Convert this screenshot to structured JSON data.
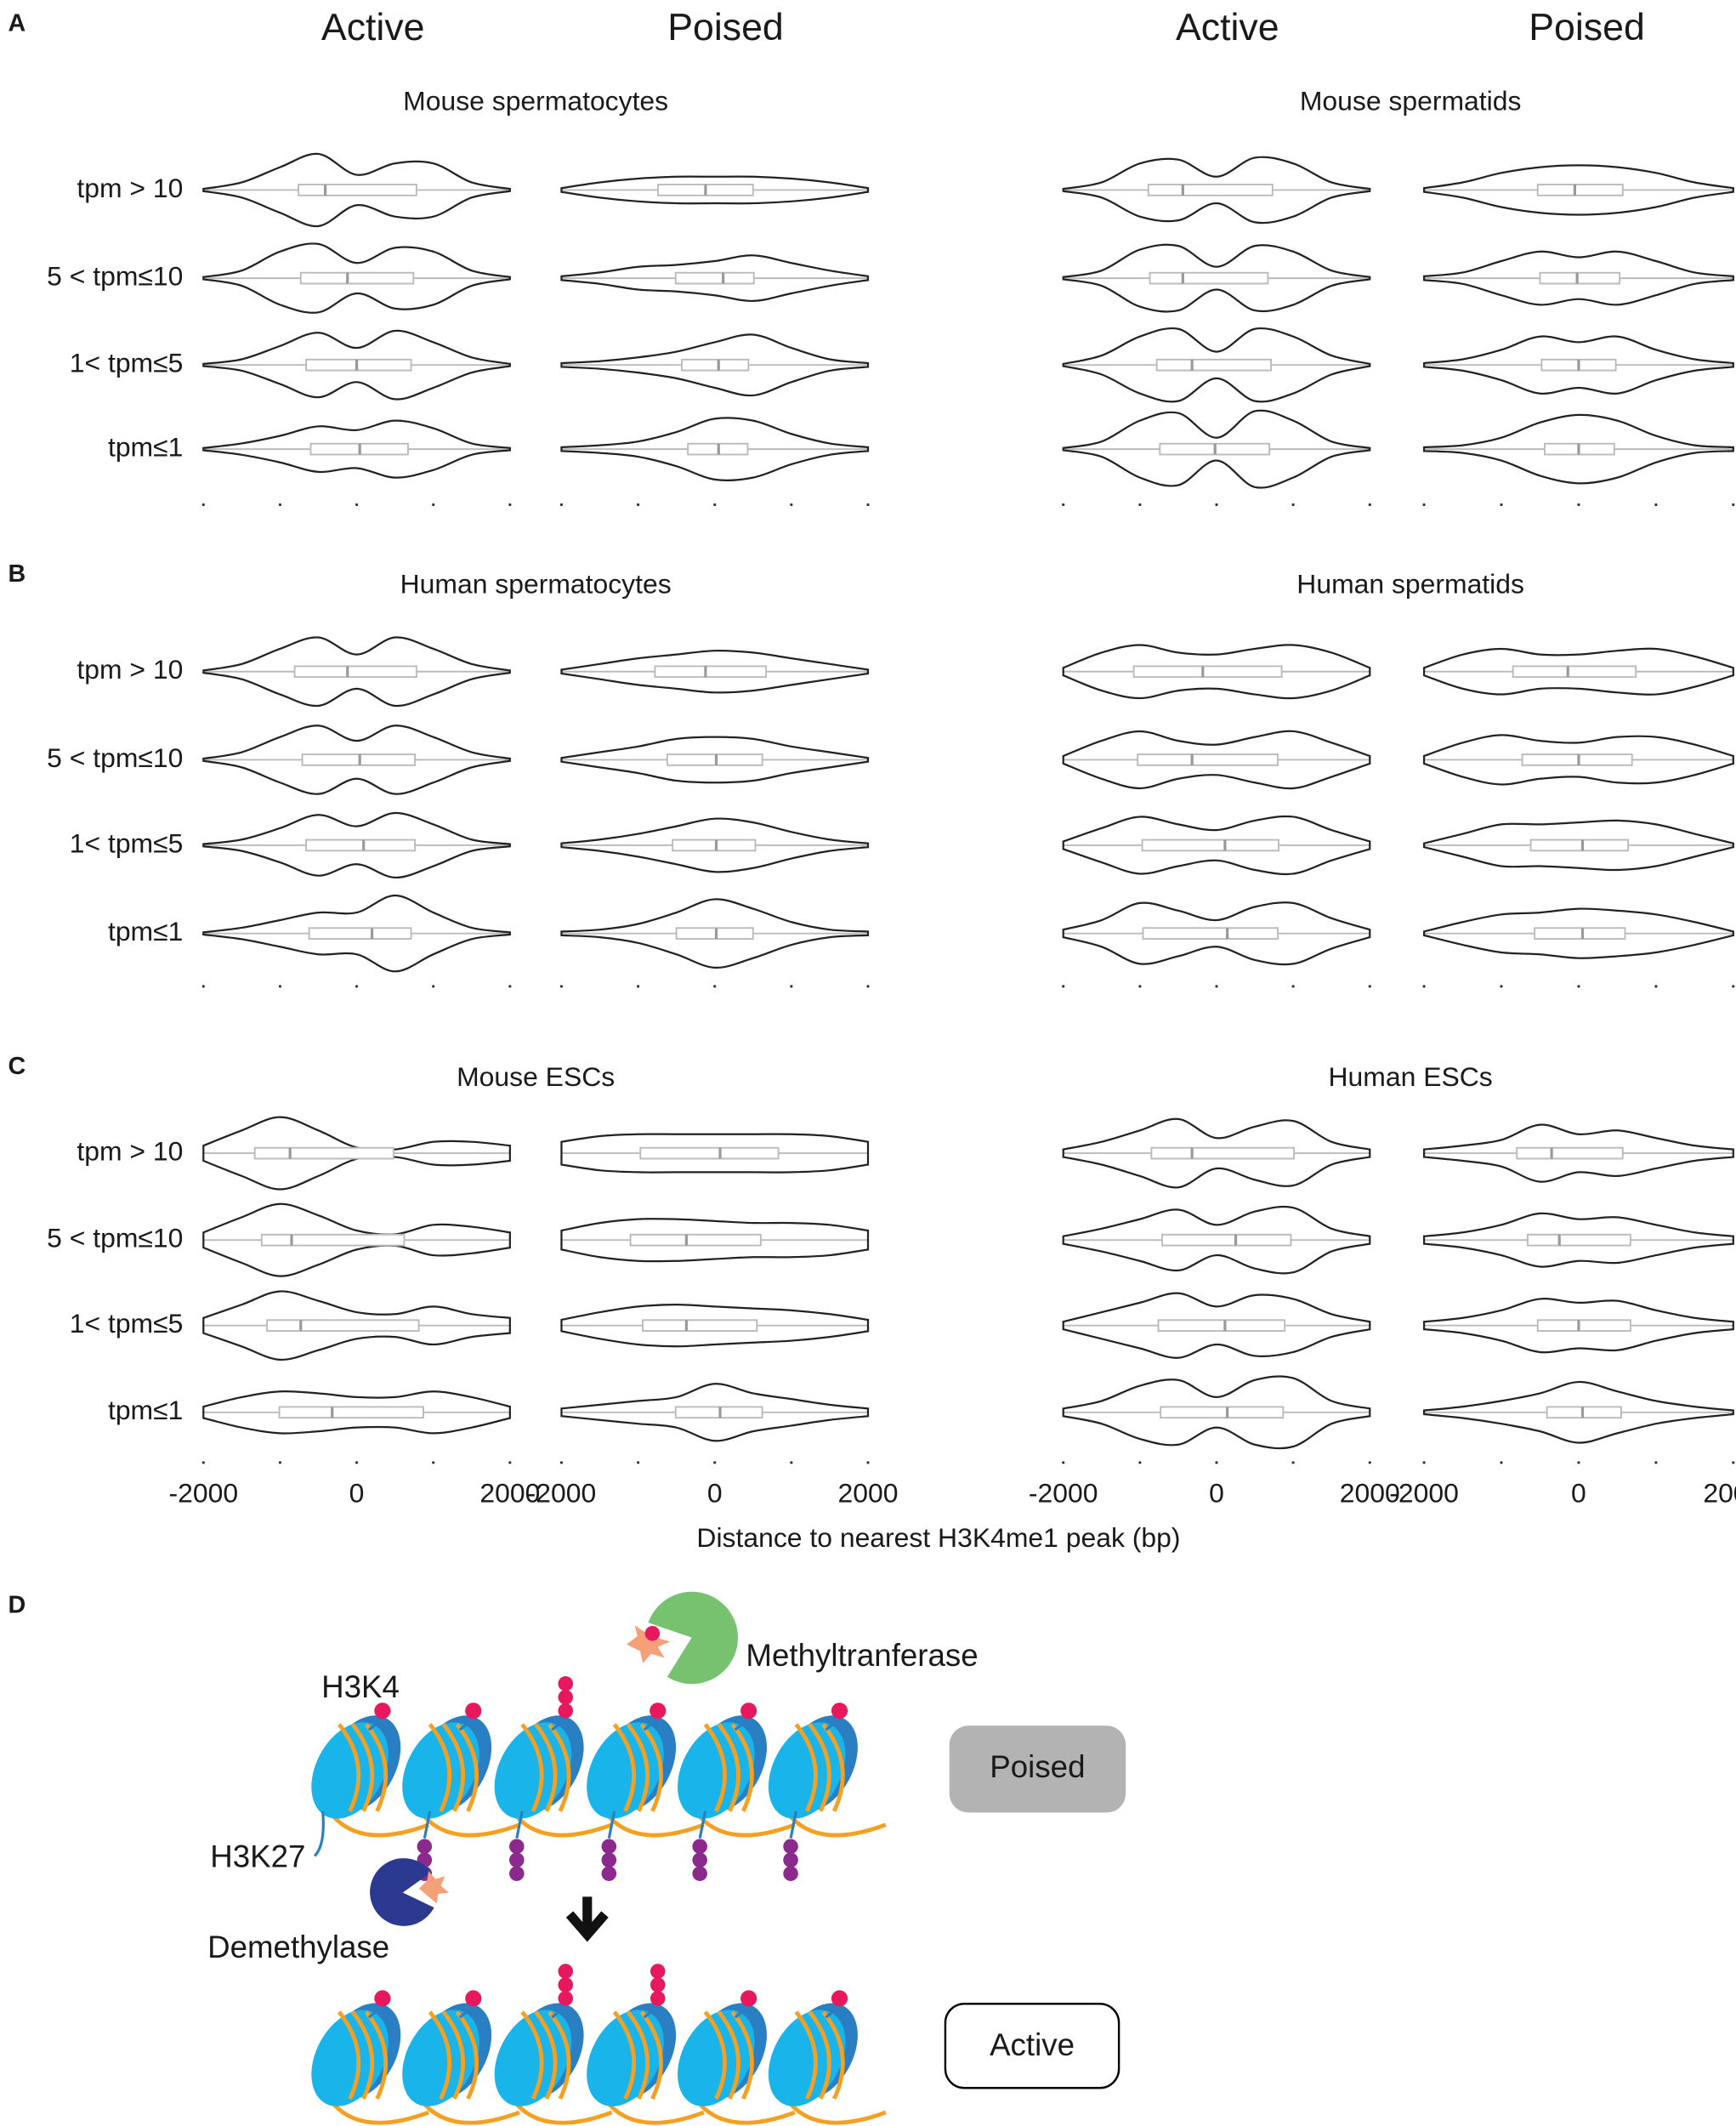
{
  "panel_labels": [
    "A",
    "B",
    "C",
    "D"
  ],
  "column_titles": [
    "Active",
    "Poised",
    "Active",
    "Poised"
  ],
  "row_labels": [
    "tpm > 10",
    "5 < tpm≤10",
    "1< tpm≤5",
    "tpm≤1"
  ],
  "x_label": "Distance to nearest H3K4me1 peak (bp)",
  "xlim": [
    -2000,
    2000
  ],
  "xticks": [
    -2000,
    0,
    2000
  ],
  "minor_xticks": [
    -1000,
    1000
  ],
  "density_x": [
    -2000,
    -1500,
    -1000,
    -500,
    0,
    500,
    1000,
    1500,
    2000
  ],
  "chart_data": [
    {
      "type": "violin",
      "title": "Mouse spermatocytes",
      "violins": [
        [
          {
            "density": [
              0.03,
              0.2,
              0.6,
              0.95,
              0.4,
              0.7,
              0.7,
              0.2,
              0.03
            ],
            "box": [
              -760,
              -410,
              780
            ]
          },
          {
            "density": [
              0.03,
              0.2,
              0.7,
              0.9,
              0.4,
              0.8,
              0.7,
              0.2,
              0.03
            ],
            "box": [
              -730,
              -120,
              740
            ]
          },
          {
            "density": [
              0.03,
              0.15,
              0.5,
              0.85,
              0.45,
              0.9,
              0.6,
              0.2,
              0.03
            ],
            "box": [
              -660,
              0,
              710
            ]
          },
          {
            "density": [
              0.03,
              0.15,
              0.35,
              0.6,
              0.5,
              0.75,
              0.55,
              0.15,
              0.03
            ],
            "box": [
              -600,
              40,
              670
            ]
          }
        ],
        [
          {
            "density": [
              0.05,
              0.2,
              0.3,
              0.35,
              0.35,
              0.35,
              0.3,
              0.2,
              0.05
            ],
            "box": [
              -740,
              -120,
              500
            ]
          },
          {
            "density": [
              0.05,
              0.15,
              0.3,
              0.35,
              0.45,
              0.6,
              0.4,
              0.2,
              0.05
            ],
            "box": [
              -510,
              110,
              510
            ]
          },
          {
            "density": [
              0.05,
              0.1,
              0.2,
              0.35,
              0.6,
              0.8,
              0.45,
              0.15,
              0.05
            ],
            "box": [
              -430,
              50,
              440
            ]
          },
          {
            "density": [
              0.05,
              0.1,
              0.2,
              0.45,
              0.8,
              0.75,
              0.4,
              0.15,
              0.05
            ],
            "box": [
              -350,
              50,
              430
            ]
          }
        ]
      ]
    },
    {
      "type": "violin",
      "title": "Mouse spermatids",
      "violins": [
        [
          {
            "density": [
              0.03,
              0.2,
              0.7,
              0.8,
              0.35,
              0.85,
              0.7,
              0.2,
              0.03
            ],
            "box": [
              -890,
              -440,
              730
            ]
          },
          {
            "density": [
              0.03,
              0.2,
              0.75,
              0.85,
              0.3,
              0.85,
              0.7,
              0.2,
              0.03
            ],
            "box": [
              -870,
              -440,
              670
            ]
          },
          {
            "density": [
              0.03,
              0.25,
              0.75,
              0.95,
              0.35,
              0.95,
              0.75,
              0.25,
              0.03
            ],
            "box": [
              -780,
              -320,
              710
            ]
          },
          {
            "density": [
              0.03,
              0.2,
              0.75,
              0.95,
              0.3,
              1.0,
              0.75,
              0.2,
              0.03
            ],
            "box": [
              -740,
              -20,
              690
            ]
          }
        ],
        [
          {
            "density": [
              0.05,
              0.2,
              0.45,
              0.6,
              0.65,
              0.6,
              0.45,
              0.2,
              0.05
            ],
            "box": [
              -530,
              -50,
              570
            ]
          },
          {
            "density": [
              0.05,
              0.15,
              0.45,
              0.7,
              0.55,
              0.7,
              0.45,
              0.15,
              0.05
            ],
            "box": [
              -500,
              -20,
              530
            ]
          },
          {
            "density": [
              0.05,
              0.15,
              0.4,
              0.75,
              0.6,
              0.75,
              0.4,
              0.15,
              0.05
            ],
            "box": [
              -480,
              0,
              480
            ]
          },
          {
            "density": [
              0.05,
              0.1,
              0.3,
              0.7,
              0.9,
              0.75,
              0.35,
              0.1,
              0.05
            ],
            "box": [
              -440,
              0,
              460
            ]
          }
        ]
      ]
    },
    {
      "type": "violin",
      "title": "Human spermatocytes",
      "violins": [
        [
          {
            "density": [
              0.03,
              0.2,
              0.6,
              0.9,
              0.45,
              0.9,
              0.6,
              0.2,
              0.03
            ],
            "box": [
              -810,
              -120,
              780
            ]
          },
          {
            "density": [
              0.03,
              0.2,
              0.6,
              0.9,
              0.5,
              0.9,
              0.6,
              0.2,
              0.03
            ],
            "box": [
              -710,
              40,
              760
            ]
          },
          {
            "density": [
              0.03,
              0.15,
              0.45,
              0.8,
              0.5,
              0.85,
              0.55,
              0.15,
              0.03
            ],
            "box": [
              -660,
              90,
              760
            ]
          },
          {
            "density": [
              0.03,
              0.15,
              0.35,
              0.55,
              0.55,
              1.0,
              0.55,
              0.15,
              0.03
            ],
            "box": [
              -620,
              200,
              710
            ]
          }
        ],
        [
          {
            "density": [
              0.05,
              0.2,
              0.35,
              0.45,
              0.55,
              0.5,
              0.35,
              0.2,
              0.05
            ],
            "box": [
              -780,
              -120,
              670
            ]
          },
          {
            "density": [
              0.05,
              0.2,
              0.35,
              0.55,
              0.6,
              0.55,
              0.35,
              0.2,
              0.05
            ],
            "box": [
              -620,
              20,
              620
            ]
          },
          {
            "density": [
              0.05,
              0.15,
              0.3,
              0.5,
              0.7,
              0.6,
              0.35,
              0.15,
              0.05
            ],
            "box": [
              -550,
              20,
              530
            ]
          },
          {
            "density": [
              0.05,
              0.1,
              0.25,
              0.55,
              0.9,
              0.65,
              0.3,
              0.1,
              0.05
            ],
            "box": [
              -500,
              20,
              500
            ]
          }
        ]
      ]
    },
    {
      "type": "violin",
      "title": "Human spermatids",
      "violins": [
        [
          {
            "density": [
              0.1,
              0.5,
              0.7,
              0.5,
              0.45,
              0.6,
              0.7,
              0.5,
              0.1
            ],
            "box": [
              -1080,
              -180,
              850
            ]
          },
          {
            "density": [
              0.1,
              0.5,
              0.75,
              0.5,
              0.4,
              0.6,
              0.75,
              0.45,
              0.1
            ],
            "box": [
              -1030,
              -320,
              800
            ]
          },
          {
            "density": [
              0.1,
              0.45,
              0.75,
              0.55,
              0.4,
              0.65,
              0.75,
              0.4,
              0.1
            ],
            "box": [
              -970,
              110,
              810
            ]
          },
          {
            "density": [
              0.1,
              0.35,
              0.8,
              0.6,
              0.35,
              0.7,
              0.8,
              0.4,
              0.1
            ],
            "box": [
              -960,
              140,
              800
            ]
          }
        ],
        [
          {
            "density": [
              0.1,
              0.45,
              0.6,
              0.45,
              0.45,
              0.55,
              0.6,
              0.4,
              0.1
            ],
            "box": [
              -850,
              -140,
              740
            ]
          },
          {
            "density": [
              0.1,
              0.45,
              0.65,
              0.5,
              0.45,
              0.6,
              0.6,
              0.4,
              0.1
            ],
            "box": [
              -730,
              0,
              690
            ]
          },
          {
            "density": [
              0.05,
              0.3,
              0.55,
              0.55,
              0.6,
              0.65,
              0.55,
              0.3,
              0.05
            ],
            "box": [
              -620,
              50,
              640
            ]
          },
          {
            "density": [
              0.05,
              0.3,
              0.5,
              0.55,
              0.65,
              0.6,
              0.5,
              0.3,
              0.05
            ],
            "box": [
              -570,
              50,
              600
            ]
          }
        ]
      ]
    },
    {
      "type": "violin",
      "title": "Mouse ESCs",
      "violins": [
        [
          {
            "density": [
              0.2,
              0.6,
              0.95,
              0.6,
              0.15,
              0.1,
              0.3,
              0.3,
              0.2
            ],
            "box": [
              -1330,
              -870,
              480
            ]
          },
          {
            "density": [
              0.2,
              0.6,
              0.95,
              0.65,
              0.25,
              0.15,
              0.4,
              0.35,
              0.2
            ],
            "box": [
              -1240,
              -850,
              620
            ]
          },
          {
            "density": [
              0.2,
              0.55,
              0.9,
              0.65,
              0.35,
              0.3,
              0.5,
              0.3,
              0.2
            ],
            "box": [
              -1170,
              -730,
              810
            ]
          },
          {
            "density": [
              0.15,
              0.4,
              0.55,
              0.5,
              0.4,
              0.4,
              0.55,
              0.4,
              0.15
            ],
            "box": [
              -1010,
              -320,
              870
            ]
          }
        ],
        [
          {
            "density": [
              0.3,
              0.45,
              0.5,
              0.5,
              0.5,
              0.5,
              0.5,
              0.45,
              0.3
            ],
            "box": [
              -970,
              70,
              830
            ]
          },
          {
            "density": [
              0.25,
              0.45,
              0.55,
              0.55,
              0.5,
              0.45,
              0.45,
              0.4,
              0.25
            ],
            "box": [
              -1100,
              -370,
              600
            ]
          },
          {
            "density": [
              0.15,
              0.35,
              0.5,
              0.55,
              0.5,
              0.45,
              0.4,
              0.3,
              0.15
            ],
            "box": [
              -940,
              -370,
              550
            ]
          },
          {
            "density": [
              0.1,
              0.2,
              0.3,
              0.4,
              0.75,
              0.5,
              0.35,
              0.2,
              0.1
            ],
            "box": [
              -510,
              70,
              620
            ]
          }
        ]
      ]
    },
    {
      "type": "violin",
      "title": "Human ESCs",
      "violins": [
        [
          {
            "density": [
              0.1,
              0.3,
              0.6,
              0.9,
              0.4,
              0.7,
              0.85,
              0.3,
              0.1
            ],
            "box": [
              -850,
              -320,
              1010
            ]
          },
          {
            "density": [
              0.1,
              0.3,
              0.55,
              0.8,
              0.4,
              0.75,
              0.85,
              0.3,
              0.1
            ],
            "box": [
              -710,
              250,
              970
            ]
          },
          {
            "density": [
              0.1,
              0.35,
              0.6,
              0.85,
              0.5,
              0.8,
              0.7,
              0.3,
              0.1
            ],
            "box": [
              -760,
              110,
              890
            ]
          },
          {
            "density": [
              0.1,
              0.3,
              0.7,
              0.85,
              0.4,
              0.85,
              0.9,
              0.3,
              0.1
            ],
            "box": [
              -730,
              140,
              870
            ]
          }
        ],
        [
          {
            "density": [
              0.1,
              0.2,
              0.35,
              0.75,
              0.5,
              0.6,
              0.4,
              0.2,
              0.1
            ],
            "box": [
              -800,
              -350,
              570
            ]
          },
          {
            "density": [
              0.1,
              0.2,
              0.4,
              0.7,
              0.55,
              0.6,
              0.4,
              0.2,
              0.1
            ],
            "box": [
              -660,
              -250,
              670
            ]
          },
          {
            "density": [
              0.1,
              0.2,
              0.4,
              0.7,
              0.6,
              0.65,
              0.4,
              0.2,
              0.1
            ],
            "box": [
              -530,
              0,
              670
            ]
          },
          {
            "density": [
              0.05,
              0.15,
              0.3,
              0.5,
              0.8,
              0.55,
              0.3,
              0.15,
              0.05
            ],
            "box": [
              -410,
              50,
              550
            ]
          }
        ]
      ]
    }
  ],
  "diagram": {
    "h3k4": "H3K4",
    "h3k27": "H3K27",
    "demethylase": "Demethylase",
    "methyltransferase": "Methyltranferase",
    "states": [
      "Poised",
      "Active"
    ]
  }
}
